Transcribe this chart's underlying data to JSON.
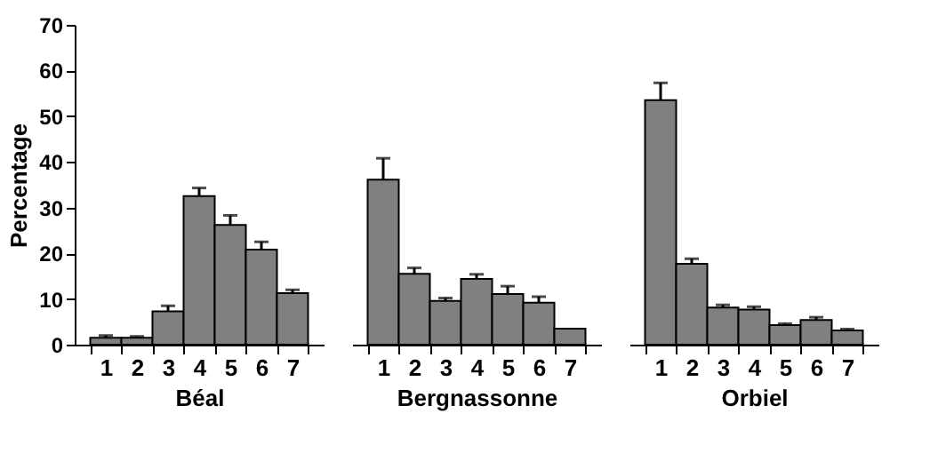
{
  "chart_data": [
    {
      "type": "bar",
      "ylabel": "Percentage",
      "xlabel": "Béal",
      "categories": [
        "1",
        "2",
        "3",
        "4",
        "5",
        "6",
        "7"
      ],
      "values": [
        1.5,
        1.5,
        7.3,
        32.5,
        26.2,
        20.8,
        11.3
      ],
      "errors": [
        [
          1.5,
          2.0
        ],
        [
          1.5,
          1.8
        ],
        [
          7.3,
          8.5
        ],
        [
          32.5,
          34.3
        ],
        [
          26.2,
          28.3
        ],
        [
          20.8,
          22.5
        ],
        [
          11.3,
          12.0
        ]
      ],
      "color": "#808080",
      "ylim": [
        0,
        70
      ],
      "yticks": [
        0,
        10,
        20,
        30,
        40,
        50,
        60,
        70
      ],
      "grid": false
    },
    {
      "type": "bar",
      "xlabel": "Bergnassonne",
      "categories": [
        "1",
        "2",
        "3",
        "4",
        "5",
        "6",
        "7"
      ],
      "values": [
        36.1,
        15.5,
        9.6,
        14.4,
        11.1,
        9.2,
        3.5
      ],
      "errors": [
        [
          36.1,
          40.8
        ],
        [
          15.5,
          16.8
        ],
        [
          9.6,
          10.2
        ],
        [
          14.4,
          15.4
        ],
        [
          11.1,
          12.8
        ],
        [
          9.2,
          10.5
        ],
        null
      ],
      "color": "#808080",
      "ylim": [
        0,
        70
      ],
      "yticks": [
        0,
        10,
        20,
        30,
        40,
        50,
        60,
        70
      ],
      "tick_labels": "x",
      "grid": false
    },
    {
      "type": "bar",
      "xlabel": "Orbiel",
      "categories": [
        "1",
        "2",
        "3",
        "4",
        "5",
        "6",
        "7"
      ],
      "values": [
        53.5,
        17.7,
        8.1,
        7.7,
        4.3,
        5.4,
        3.1
      ],
      "errors": [
        [
          53.5,
          57.3
        ],
        [
          17.7,
          18.8
        ],
        [
          8.1,
          8.7
        ],
        [
          7.7,
          8.3
        ],
        [
          4.3,
          4.6
        ],
        [
          5.4,
          6.0
        ],
        [
          3.1,
          3.4
        ]
      ],
      "color": "#808080",
      "ylim": [
        0,
        70
      ],
      "yticks": [
        0,
        10,
        20,
        30,
        40,
        50,
        60,
        70
      ],
      "tick_labels": "x",
      "grid": false
    }
  ]
}
